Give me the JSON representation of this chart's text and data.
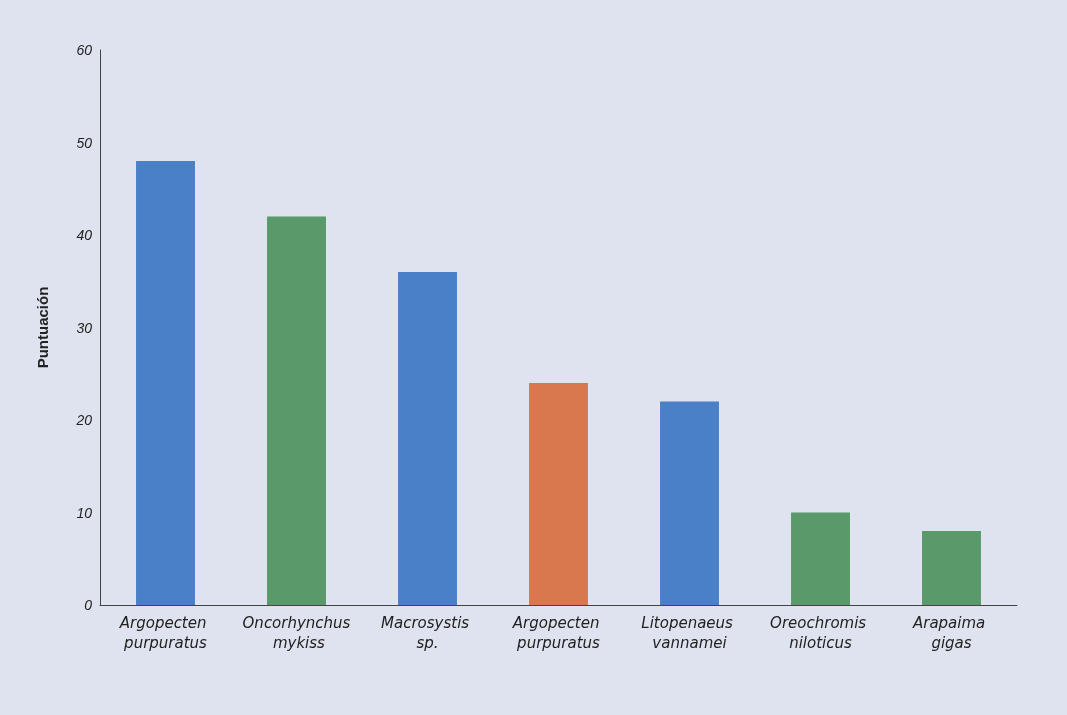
{
  "chart_data": {
    "type": "bar",
    "ylabel": "Puntuación",
    "categories": [
      "Argopecten purpuratus",
      "Oncorhynchus mykiss",
      "Macrosystis sp.",
      "Argopecten purpuratus",
      "Litopenaeus vannamei",
      "Oreochromis niloticus",
      "Arapaima gigas"
    ],
    "values": [
      48,
      42,
      36,
      24,
      22,
      10,
      8
    ],
    "colors": [
      "#4a80c8",
      "#5a9a6a",
      "#4a80c8",
      "#d9784f",
      "#4a80c8",
      "#5a9a6a",
      "#5a9a6a"
    ],
    "ylim": [
      0,
      60
    ],
    "yticks": [
      0,
      10,
      20,
      30,
      40,
      50,
      60
    ],
    "grid": false
  }
}
